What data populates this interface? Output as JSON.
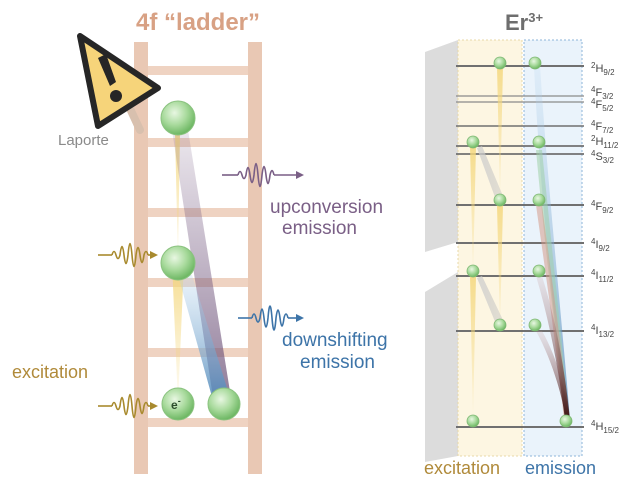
{
  "ladder": {
    "title": "4f “ladder”",
    "laporte": "Laporte",
    "upconversion": [
      "upconversion",
      "emission"
    ],
    "downshifting": [
      "downshifting",
      "emission"
    ],
    "excitation": "excitation",
    "electron": "e",
    "electron_sup": "-"
  },
  "er": {
    "title": "Er",
    "title_sup": "3+",
    "levels": [
      {
        "term": "H",
        "mult": "2",
        "j": "9/2"
      },
      {
        "term": "F",
        "mult": "4",
        "j": "3/2"
      },
      {
        "term": "F",
        "mult": "4",
        "j": "5/2"
      },
      {
        "term": "F",
        "mult": "4",
        "j": "7/2"
      },
      {
        "term": "H",
        "mult": "2",
        "j": "11/2"
      },
      {
        "term": "S",
        "mult": "4",
        "j": "3/2"
      },
      {
        "term": "F",
        "mult": "4",
        "j": "9/2"
      },
      {
        "term": "I",
        "mult": "4",
        "j": "9/2"
      },
      {
        "term": "I",
        "mult": "4",
        "j": "11/2"
      },
      {
        "term": "I",
        "mult": "4",
        "j": "13/2"
      },
      {
        "term": "H",
        "mult": "4",
        "j": "15/2"
      }
    ],
    "col_excitation": "excitation",
    "col_emission": "emission"
  },
  "colors": {
    "ladder": "#e7c4b0",
    "sphere": "#8fcf84",
    "excitation_beam": "#f2d27a",
    "emission_purple": "#7a5f86",
    "emission_blue": "#4d86b8",
    "warning": "#f6d47a"
  }
}
